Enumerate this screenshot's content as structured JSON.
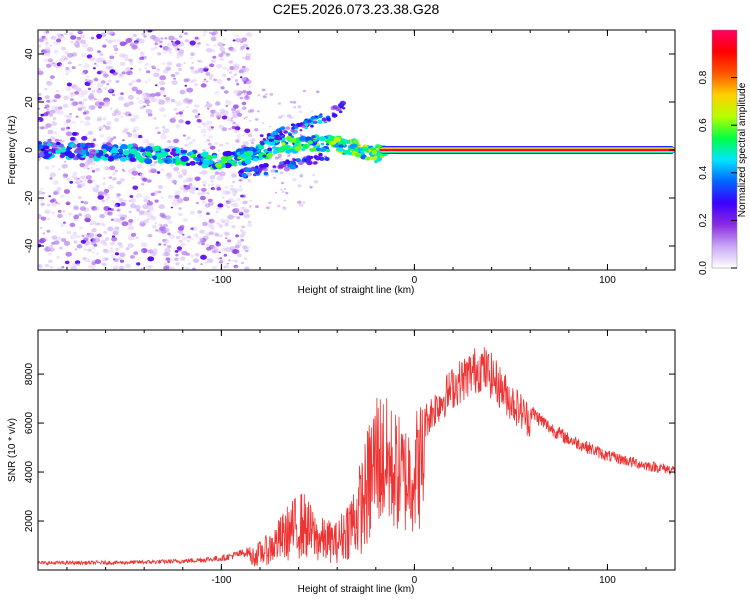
{
  "figure_title": "C2E5.2026.073.23.38.G28",
  "chart_data": [
    {
      "type": "heatmap",
      "title": "",
      "xlabel": "Height of straight line (km)",
      "ylabel": "Frequency (Hz)",
      "xlim": [
        -195,
        135
      ],
      "ylim": [
        -50,
        50
      ],
      "x_ticks": [
        -100,
        0,
        100
      ],
      "y_ticks": [
        -40,
        -20,
        0,
        20,
        40
      ],
      "grid": false,
      "colorbar": {
        "label": "Normalized spectral amplitude",
        "range": [
          0,
          1
        ],
        "ticks": [
          0.0,
          0.2,
          0.4,
          0.6,
          0.8
        ],
        "colormap": [
          "#ffffff",
          "#c9a7f5",
          "#8a2be2",
          "#3b00ff",
          "#0066ff",
          "#00e5ff",
          "#00ff44",
          "#b6ff00",
          "#ffd000",
          "#ff5500",
          "#ff0000",
          "#ff0066"
        ]
      },
      "ridge": [
        {
          "x": -195,
          "freq": 0
        },
        {
          "x": -150,
          "freq": -1
        },
        {
          "x": -120,
          "freq": -3
        },
        {
          "x": -100,
          "freq": -5
        },
        {
          "x": -85,
          "freq": -2
        },
        {
          "x": -70,
          "freq": 2
        },
        {
          "x": -55,
          "freq": 3
        },
        {
          "x": -40,
          "freq": 2
        },
        {
          "x": -30,
          "freq": 1
        },
        {
          "x": -20,
          "freq": -2
        },
        {
          "x": -15,
          "freq": 0
        },
        {
          "x": 0,
          "freq": 0
        },
        {
          "x": 135,
          "freq": 0
        }
      ],
      "secondary_ridge": [
        {
          "x": -90,
          "freq": -10
        },
        {
          "x": -75,
          "freq": -8
        },
        {
          "x": -60,
          "freq": -5
        },
        {
          "x": -45,
          "freq": -3
        }
      ],
      "upper_branch": [
        {
          "x": -80,
          "freq": 4
        },
        {
          "x": -65,
          "freq": 8
        },
        {
          "x": -55,
          "freq": 11
        },
        {
          "x": -45,
          "freq": 14
        },
        {
          "x": -38,
          "freq": 18
        },
        {
          "x": -33,
          "freq": 21
        }
      ]
    },
    {
      "type": "line",
      "title": "",
      "xlabel": "Height of straight line (km)",
      "ylabel": "SNR (10 * v/v)",
      "xlim": [
        -195,
        135
      ],
      "ylim": [
        0,
        9800
      ],
      "x_ticks": [
        -100,
        0,
        100
      ],
      "y_ticks": [
        2000,
        4000,
        6000,
        8000
      ],
      "grid": false,
      "series": [
        {
          "name": "SNR",
          "color": "#ee3333",
          "envelope": [
            {
              "x": -195,
              "y": 300
            },
            {
              "x": -150,
              "y": 320
            },
            {
              "x": -120,
              "y": 380
            },
            {
              "x": -100,
              "y": 500
            },
            {
              "x": -85,
              "y": 800
            },
            {
              "x": -75,
              "y": 1400
            },
            {
              "x": -65,
              "y": 2500
            },
            {
              "x": -58,
              "y": 3000
            },
            {
              "x": -50,
              "y": 2000
            },
            {
              "x": -40,
              "y": 1800
            },
            {
              "x": -30,
              "y": 3500
            },
            {
              "x": -25,
              "y": 5000
            },
            {
              "x": -20,
              "y": 7000
            },
            {
              "x": -15,
              "y": 6500
            },
            {
              "x": -10,
              "y": 6000
            },
            {
              "x": -5,
              "y": 5500
            },
            {
              "x": 0,
              "y": 6000
            },
            {
              "x": 10,
              "y": 7200
            },
            {
              "x": 20,
              "y": 8200
            },
            {
              "x": 30,
              "y": 8900
            },
            {
              "x": 35,
              "y": 9100
            },
            {
              "x": 40,
              "y": 8700
            },
            {
              "x": 50,
              "y": 7600
            },
            {
              "x": 60,
              "y": 6700
            },
            {
              "x": 70,
              "y": 6000
            },
            {
              "x": 80,
              "y": 5500
            },
            {
              "x": 100,
              "y": 4800
            },
            {
              "x": 120,
              "y": 4400
            },
            {
              "x": 135,
              "y": 4200
            }
          ]
        }
      ]
    }
  ]
}
